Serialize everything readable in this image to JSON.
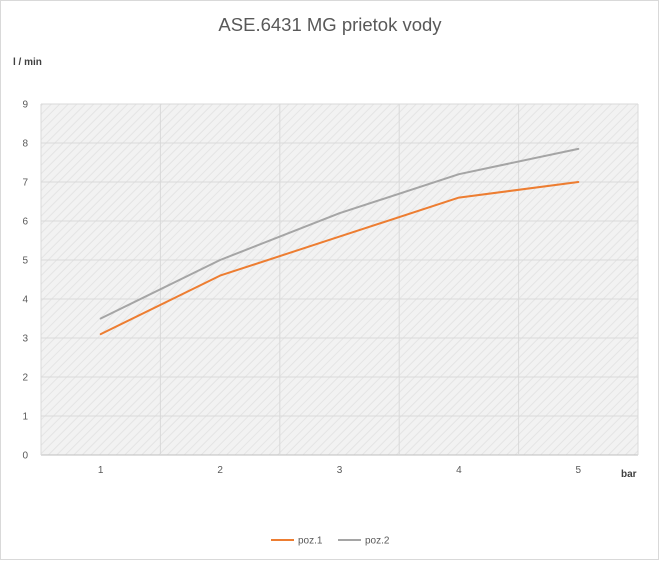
{
  "chart_data": {
    "type": "line",
    "title": "ASE.6431 MG  prietok vody",
    "ylabel": "l / min",
    "xlabel": "bar",
    "categories": [
      "1",
      "2",
      "3",
      "4",
      "5"
    ],
    "ylim": [
      0,
      9
    ],
    "yticks": [
      0,
      1,
      2,
      3,
      4,
      5,
      6,
      7,
      8,
      9
    ],
    "grid": true,
    "legend_position": "bottom",
    "series": [
      {
        "name": "poz.1",
        "color": "#ed7d31",
        "values": [
          3.1,
          4.6,
          5.6,
          6.6,
          7.0
        ]
      },
      {
        "name": "poz.2",
        "color": "#a5a5a5",
        "values": [
          3.5,
          5.0,
          6.2,
          7.2,
          7.85
        ]
      }
    ]
  }
}
